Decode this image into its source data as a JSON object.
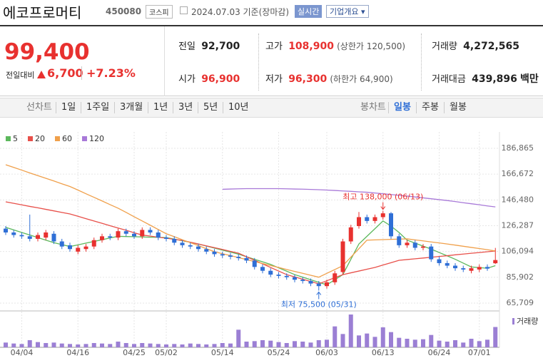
{
  "header": {
    "name": "에코프로머티",
    "code": "450080",
    "market": "코스피",
    "date": "2024.07.03 기준(장마감)",
    "realtime": "실시간",
    "company_info": "기업개요"
  },
  "quote": {
    "price": "99,400",
    "change_label": "전일대비",
    "change": "6,700",
    "change_rate": "+7.23%",
    "stats": [
      {
        "label": "전일",
        "value": "92,700"
      },
      {
        "label": "고가",
        "value": "108,900",
        "note": "(상한가 120,500)"
      },
      {
        "label": "거래량",
        "value": "4,272,565"
      },
      {
        "label": "시가",
        "value": "96,900"
      },
      {
        "label": "저가",
        "value": "96,300",
        "note": "(하한가 64,900)"
      },
      {
        "label": "거래대금",
        "value": "439,896",
        "unit": "백만"
      }
    ]
  },
  "tabs": {
    "line_label": "선차트",
    "line_periods": [
      "1일",
      "1주일",
      "3개월",
      "1년",
      "3년",
      "5년",
      "10년"
    ],
    "candle_label": "봉차트",
    "candle_periods": [
      "일봉",
      "주봉",
      "월봉"
    ],
    "selected": 0
  },
  "chart_data": {
    "type": "candlestick",
    "categories": [
      null,
      null,
      "04/04",
      null,
      null,
      null,
      null,
      null,
      null,
      "04/16",
      null,
      null,
      null,
      null,
      null,
      null,
      "04/25",
      null,
      null,
      null,
      "05/02",
      null,
      null,
      null,
      null,
      null,
      null,
      "05/14",
      null,
      null,
      null,
      null,
      null,
      null,
      "05/24",
      null,
      null,
      null,
      null,
      null,
      "06/03",
      null,
      null,
      null,
      null,
      null,
      null,
      "06/13",
      null,
      null,
      null,
      null,
      null,
      null,
      "06/24",
      null,
      null,
      null,
      null,
      "07/01",
      null,
      null
    ],
    "open": [
      124000,
      121000,
      119000,
      118000,
      116000,
      117000,
      120000,
      114000,
      111000,
      106000,
      108000,
      110000,
      115000,
      118000,
      117000,
      122000,
      120000,
      118000,
      123000,
      121000,
      117000,
      116000,
      113000,
      111000,
      110000,
      108000,
      106000,
      104000,
      103000,
      102000,
      101000,
      99000,
      94000,
      91000,
      88000,
      87000,
      86000,
      84000,
      83000,
      81000,
      79000,
      82000,
      90000,
      114000,
      126000,
      133000,
      130000,
      133000,
      136000,
      118000,
      111000,
      113000,
      109000,
      110000,
      100000,
      97000,
      95000,
      93000,
      91000,
      92000,
      94000,
      96900
    ],
    "high": [
      126000,
      123000,
      121000,
      135000,
      121000,
      123000,
      122000,
      116000,
      113000,
      111000,
      112000,
      117000,
      120000,
      120000,
      124000,
      124000,
      122000,
      125000,
      125000,
      123000,
      119000,
      118000,
      115000,
      113000,
      112000,
      110000,
      108000,
      106000,
      105000,
      104000,
      103000,
      101000,
      96000,
      93000,
      90000,
      89000,
      88000,
      86000,
      85000,
      83000,
      84000,
      91000,
      116000,
      127000,
      137000,
      135000,
      135000,
      138000,
      137000,
      120000,
      115000,
      115000,
      112000,
      112000,
      102000,
      99000,
      97000,
      95000,
      95000,
      96000,
      96000,
      108900
    ],
    "low": [
      119000,
      117000,
      116000,
      114000,
      114000,
      115000,
      112000,
      108000,
      106000,
      104000,
      106000,
      108000,
      113000,
      115000,
      115000,
      118000,
      116000,
      116000,
      119000,
      115000,
      114000,
      111000,
      109000,
      108000,
      106000,
      104000,
      102000,
      101000,
      100000,
      99000,
      97000,
      92000,
      89000,
      86000,
      85000,
      84000,
      82000,
      81000,
      79000,
      75500,
      77000,
      80000,
      88000,
      112000,
      124000,
      128000,
      128000,
      131000,
      116000,
      109000,
      109000,
      107000,
      107000,
      98000,
      95000,
      93000,
      91000,
      90000,
      89000,
      90000,
      91000,
      96300
    ],
    "close": [
      121000,
      119000,
      118000,
      116000,
      119000,
      121000,
      114000,
      110000,
      108000,
      109000,
      110000,
      115000,
      118000,
      117000,
      122000,
      120000,
      118000,
      123000,
      121000,
      117000,
      116000,
      113000,
      111000,
      110000,
      108000,
      106000,
      104000,
      103000,
      102000,
      101000,
      99000,
      94000,
      91000,
      88000,
      87000,
      86000,
      84000,
      83000,
      81000,
      79000,
      82000,
      89000,
      114000,
      125000,
      133000,
      130000,
      133000,
      136000,
      118000,
      111000,
      113000,
      109000,
      110000,
      100000,
      97000,
      95000,
      93000,
      92000,
      93000,
      94000,
      92700,
      99400
    ],
    "up_color": "#e8312f",
    "down_color": "#2f6fd6",
    "moving_averages": [
      {
        "name": "5",
        "color": "#5cb85c",
        "values": [
          125000,
          123000,
          121000,
          119000,
          117000,
          115000,
          113000,
          111500,
          110000,
          111300,
          112700,
          114000,
          115300,
          116700,
          118000,
          117800,
          117700,
          117500,
          117300,
          117200,
          117000,
          115800,
          114500,
          113300,
          112000,
          110400,
          108800,
          107200,
          105600,
          104000,
          102000,
          100000,
          98000,
          96000,
          93300,
          90700,
          88000,
          86000,
          84000,
          82000,
          80000,
          84000,
          88000,
          100000,
          112000,
          118000,
          124000,
          130000,
          126000,
          121000,
          115000,
          112700,
          110300,
          108000,
          105300,
          102700,
          100000,
          97000,
          94000,
          93500,
          93000,
          95000
        ]
      },
      {
        "name": "20",
        "color": "#e8504a",
        "values": [
          145000,
          143800,
          142600,
          141400,
          140300,
          139100,
          137900,
          136700,
          135500,
          133700,
          131800,
          130000,
          128200,
          126300,
          124500,
          122700,
          120800,
          119000,
          118200,
          117300,
          116500,
          115600,
          114800,
          113400,
          112000,
          110500,
          109100,
          107700,
          106200,
          104800,
          102000,
          99200,
          96400,
          93600,
          90800,
          88000,
          86200,
          84400,
          82600,
          80800,
          83200,
          85600,
          88000,
          89400,
          90800,
          92200,
          93600,
          95500,
          97300,
          99200,
          99800,
          100400,
          101000,
          101600,
          102200,
          102800,
          103500,
          104100,
          104700,
          105300,
          105900,
          106500
        ]
      },
      {
        "name": "60",
        "color": "#f0a04b",
        "values": [
          174000,
          171900,
          169800,
          167600,
          165500,
          163400,
          161300,
          159100,
          157000,
          154200,
          151300,
          148500,
          145700,
          142800,
          140000,
          136700,
          133300,
          130000,
          126700,
          123300,
          120000,
          117700,
          115300,
          113000,
          110700,
          108300,
          106000,
          104400,
          102900,
          101300,
          99800,
          98200,
          96700,
          95100,
          93600,
          92000,
          90500,
          89000,
          87500,
          86000,
          89000,
          92000,
          95000,
          101700,
          108300,
          115000,
          115200,
          115400,
          115600,
          115800,
          116000,
          115200,
          114400,
          113600,
          112800,
          112000,
          111100,
          110200,
          109300,
          108400,
          107500,
          106500
        ]
      },
      {
        "name": "120",
        "color": "#a879d8",
        "values": [
          null,
          null,
          null,
          null,
          null,
          null,
          null,
          null,
          null,
          null,
          null,
          null,
          null,
          null,
          null,
          null,
          null,
          null,
          null,
          null,
          null,
          null,
          null,
          null,
          null,
          null,
          null,
          154800,
          155000,
          155200,
          155300,
          155300,
          155300,
          155300,
          155300,
          155200,
          155000,
          154900,
          154700,
          154500,
          154200,
          153900,
          153500,
          153200,
          152800,
          152500,
          151900,
          151300,
          150700,
          150100,
          149500,
          148800,
          148100,
          147400,
          146700,
          146000,
          145200,
          144300,
          143500,
          142700,
          141800,
          141000
        ]
      }
    ],
    "ylim": [
      65709,
      186865
    ],
    "yticks": [
      {
        "value": 65709,
        "label": "65,709"
      },
      {
        "value": 85902,
        "label": "85,902"
      },
      {
        "value": 106094,
        "label": "106,094"
      },
      {
        "value": 126287,
        "label": "126,287"
      },
      {
        "value": 146480,
        "label": "146,480"
      },
      {
        "value": 166672,
        "label": "166,672"
      },
      {
        "value": 186865,
        "label": "186,865"
      }
    ],
    "grid": true,
    "annotations": [
      {
        "text": "최고 138,000 (06/13)",
        "value": 138000,
        "field": "high"
      },
      {
        "text": "최저 75,500 (05/31)",
        "value": 75500,
        "field": "low"
      }
    ],
    "volume": {
      "name": "거래량",
      "color": "#9b7fd4",
      "ylim": [
        0,
        7500000
      ],
      "values": [
        1000000,
        800000,
        700000,
        1500000,
        1100000,
        900000,
        1000000,
        800000,
        700000,
        600000,
        700000,
        900000,
        800000,
        700000,
        1200000,
        900000,
        700000,
        900000,
        800000,
        700000,
        600000,
        700000,
        600000,
        800000,
        700000,
        600000,
        700000,
        900000,
        800000,
        3700000,
        1200000,
        1300000,
        1500000,
        1400000,
        1100000,
        900000,
        1300000,
        1200000,
        1000000,
        1500000,
        1600000,
        4400000,
        2800000,
        6900000,
        2500000,
        2900000,
        2200000,
        4200000,
        3200000,
        2000000,
        1800000,
        1600000,
        1700000,
        2600000,
        1400000,
        1200000,
        1500000,
        1000000,
        1800000,
        1300000,
        1600000,
        4272565
      ]
    }
  }
}
